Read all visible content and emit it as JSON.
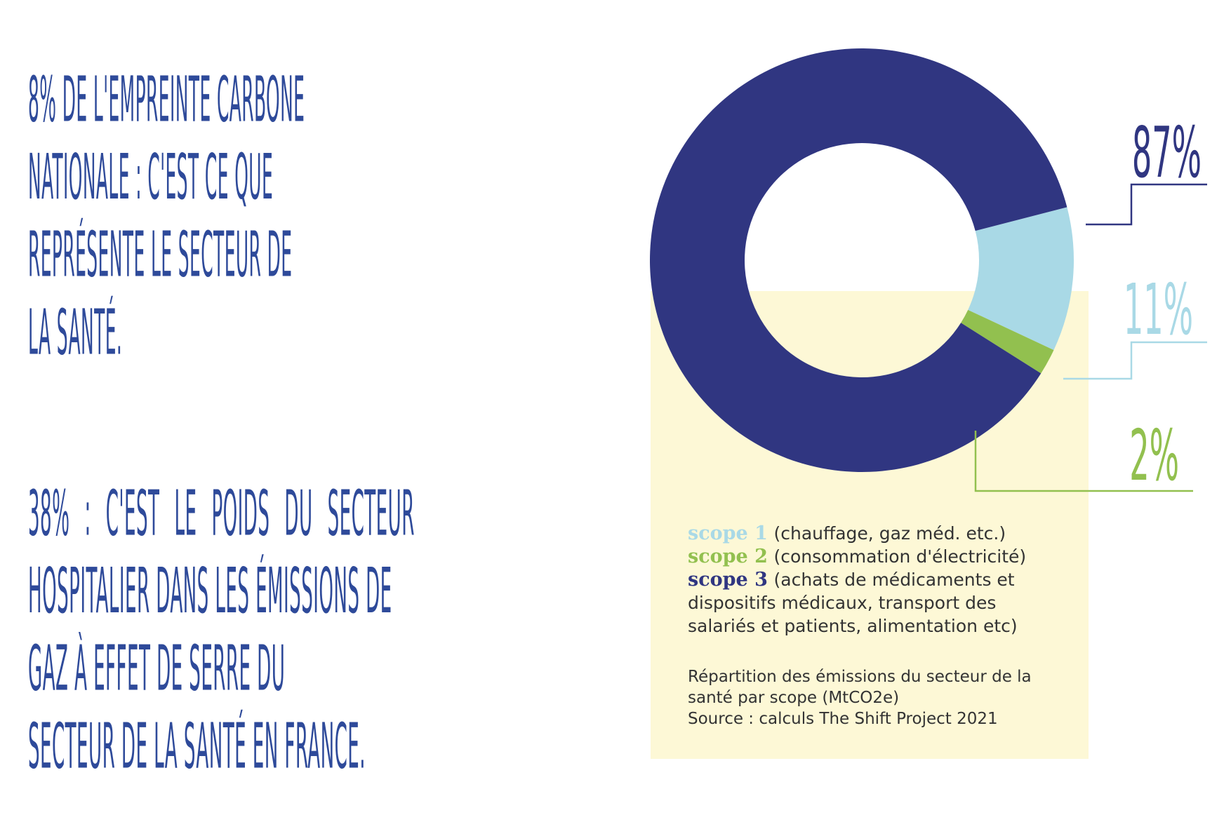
{
  "headline_1": {
    "lines": [
      "8% de l'empreinte carbone",
      "nationale : c'est ce que",
      "représente le  secteur de",
      "la santé."
    ]
  },
  "headline_2": {
    "lines": [
      "38% : c'est le poids du secteur",
      "hospitalier dans les émissions de",
      "gaz à effet de serre du",
      "secteur de la santé en France."
    ]
  },
  "chart_data": {
    "type": "pie",
    "categories": [
      "scope 3",
      "scope 1",
      "scope 2"
    ],
    "values": [
      87,
      11,
      2
    ],
    "labels": [
      "87%",
      "11%",
      "2%"
    ],
    "colors": [
      "#303681",
      "#a9d9e6",
      "#92c04f"
    ],
    "title": "",
    "legend": [
      {
        "name": "scope 1",
        "description": "(chauffage, gaz méd. etc.)",
        "color": "#a9d9e6"
      },
      {
        "name": "scope 2",
        "description": "(consommation d'électricité)",
        "color": "#92c04f"
      },
      {
        "name": "scope 3",
        "description": "(achats de médicaments et dispositifs médicaux, transport des salariés et patients, alimentation etc)",
        "color": "#303681"
      }
    ],
    "caption": [
      "Répartition des émissions du secteur de la",
      "santé par scope (MtCO2e)",
      "Source : calculs The Shift Project 2021"
    ]
  },
  "legend_desc_3_lines": [
    "(achats de médicaments et",
    "dispositifs médicaux, transport des",
    "salariés et patients, alimentation etc)"
  ],
  "colors": {
    "headline": "#2e4a9a",
    "panel": "#fdf8d6"
  }
}
